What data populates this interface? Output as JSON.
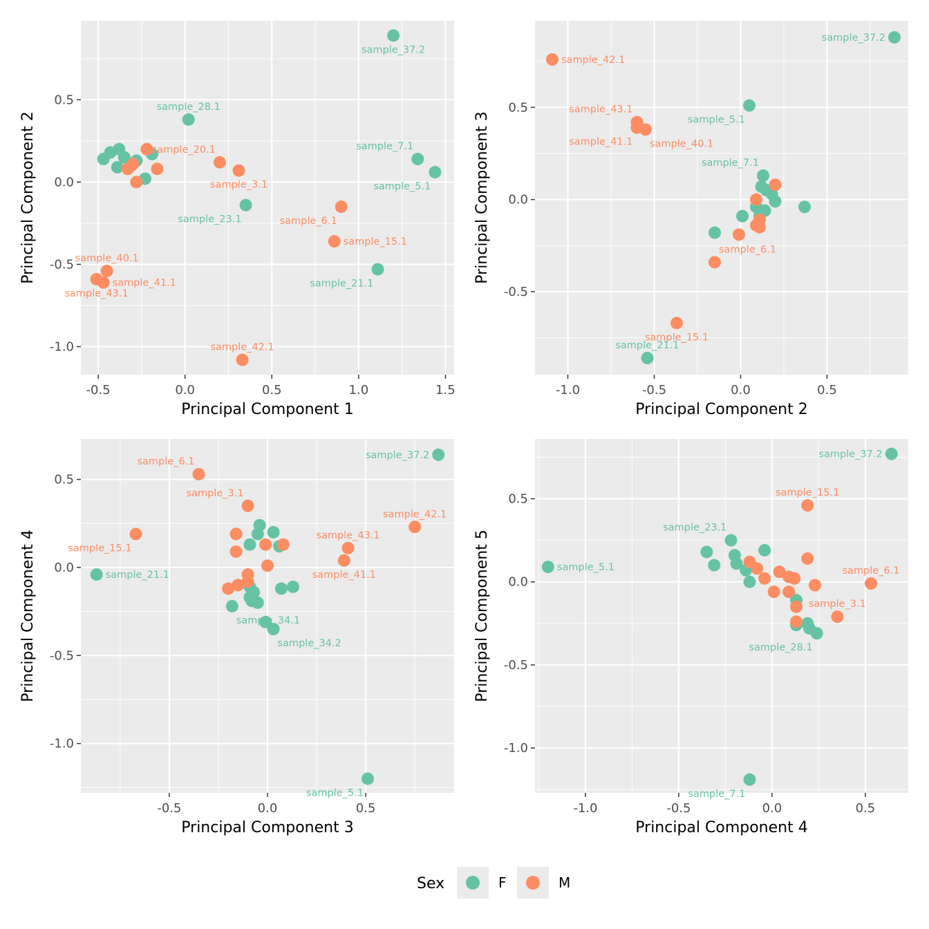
{
  "colors": {
    "F": "#66c2a5",
    "M": "#fc8d62"
  },
  "legend": {
    "title": "Sex",
    "entries": [
      {
        "key": "F",
        "label": "F"
      },
      {
        "key": "M",
        "label": "M"
      }
    ]
  },
  "chart_data": [
    {
      "type": "scatter",
      "xlabel": "Principal Component 1",
      "ylabel": "Principal Component 2",
      "xlim": [
        -0.6,
        1.55
      ],
      "ylim": [
        -1.17,
        0.98
      ],
      "xticks": [
        -0.5,
        0.0,
        0.5,
        1.0,
        1.5
      ],
      "xtick_labels": [
        "-0.5",
        "0.0",
        "0.5",
        "1.0",
        "1.5"
      ],
      "yticks": [
        -1.0,
        -0.5,
        0.0,
        0.5
      ],
      "ytick_labels": [
        "-1.0",
        "-0.5",
        "0.0",
        "0.5"
      ],
      "points": [
        {
          "x": 1.2,
          "y": 0.89,
          "sex": "F",
          "label": "sample_37.2",
          "lp": "below"
        },
        {
          "x": 0.02,
          "y": 0.38,
          "sex": "F",
          "label": "sample_28.1",
          "lp": "above"
        },
        {
          "x": 1.34,
          "y": 0.14,
          "sex": "F",
          "label": "sample_7.1",
          "lp": "above-left"
        },
        {
          "x": 1.44,
          "y": 0.06,
          "sex": "F",
          "label": "sample_5.1",
          "lp": "below-left"
        },
        {
          "x": 0.35,
          "y": -0.14,
          "sex": "F",
          "label": "sample_23.1",
          "lp": "below-left"
        },
        {
          "x": 1.11,
          "y": -0.53,
          "sex": "F",
          "label": "sample_21.1",
          "lp": "below-left"
        },
        {
          "x": 0.2,
          "y": 0.12,
          "sex": "M",
          "label": "sample_20.1",
          "lp": "above-left"
        },
        {
          "x": 0.31,
          "y": 0.07,
          "sex": "M",
          "label": "sample_3.1",
          "lp": "below"
        },
        {
          "x": 0.9,
          "y": -0.15,
          "sex": "M",
          "label": "sample_6.1",
          "lp": "below-left"
        },
        {
          "x": 0.86,
          "y": -0.36,
          "sex": "M",
          "label": "sample_15.1",
          "lp": "right"
        },
        {
          "x": -0.45,
          "y": -0.54,
          "sex": "M",
          "label": "sample_40.1",
          "lp": "above"
        },
        {
          "x": -0.47,
          "y": -0.61,
          "sex": "M",
          "label": "sample_41.1",
          "lp": "right"
        },
        {
          "x": -0.51,
          "y": -0.59,
          "sex": "M",
          "label": "sample_43.1",
          "lp": "below"
        },
        {
          "x": 0.33,
          "y": -1.08,
          "sex": "M",
          "label": "sample_42.1",
          "lp": "above"
        },
        {
          "x": -0.47,
          "y": 0.14,
          "sex": "F",
          "label": "",
          "lp": ""
        },
        {
          "x": -0.43,
          "y": 0.18,
          "sex": "F",
          "label": "",
          "lp": ""
        },
        {
          "x": -0.38,
          "y": 0.2,
          "sex": "F",
          "label": "",
          "lp": ""
        },
        {
          "x": -0.35,
          "y": 0.15,
          "sex": "F",
          "label": "",
          "lp": ""
        },
        {
          "x": -0.39,
          "y": 0.09,
          "sex": "F",
          "label": "",
          "lp": ""
        },
        {
          "x": -0.28,
          "y": 0.13,
          "sex": "F",
          "label": "",
          "lp": ""
        },
        {
          "x": -0.31,
          "y": 0.1,
          "sex": "F",
          "label": "",
          "lp": ""
        },
        {
          "x": -0.19,
          "y": 0.17,
          "sex": "F",
          "label": "",
          "lp": ""
        },
        {
          "x": -0.23,
          "y": 0.02,
          "sex": "F",
          "label": "",
          "lp": ""
        },
        {
          "x": -0.22,
          "y": 0.2,
          "sex": "M",
          "label": "",
          "lp": ""
        },
        {
          "x": -0.33,
          "y": 0.08,
          "sex": "M",
          "label": "",
          "lp": ""
        },
        {
          "x": -0.3,
          "y": 0.11,
          "sex": "M",
          "label": "",
          "lp": ""
        },
        {
          "x": -0.16,
          "y": 0.08,
          "sex": "M",
          "label": "",
          "lp": ""
        },
        {
          "x": -0.28,
          "y": 0.0,
          "sex": "M",
          "label": "",
          "lp": ""
        }
      ]
    },
    {
      "type": "scatter",
      "xlabel": "Principal Component 2",
      "ylabel": "Principal Component 3",
      "xlim": [
        -1.19,
        0.97
      ],
      "ylim": [
        -0.95,
        0.97
      ],
      "xticks": [
        -1.0,
        -0.5,
        0.0,
        0.5
      ],
      "xtick_labels": [
        "-1.0",
        "-0.5",
        "0.0",
        "0.5"
      ],
      "yticks": [
        -0.5,
        0.0,
        0.5
      ],
      "ytick_labels": [
        "-0.5",
        "0.0",
        "0.5"
      ],
      "points": [
        {
          "x": 0.89,
          "y": 0.88,
          "sex": "F",
          "label": "sample_37.2",
          "lp": "left"
        },
        {
          "x": 0.05,
          "y": 0.51,
          "sex": "F",
          "label": "sample_5.1",
          "lp": "below-left"
        },
        {
          "x": 0.13,
          "y": 0.13,
          "sex": "F",
          "label": "sample_7.1",
          "lp": "above-left"
        },
        {
          "x": -0.54,
          "y": -0.86,
          "sex": "F",
          "label": "sample_21.1",
          "lp": "above"
        },
        {
          "x": -1.09,
          "y": 0.76,
          "sex": "M",
          "label": "sample_42.1",
          "lp": "right"
        },
        {
          "x": -0.6,
          "y": 0.42,
          "sex": "M",
          "label": "sample_43.1",
          "lp": "above-left"
        },
        {
          "x": -0.6,
          "y": 0.39,
          "sex": "M",
          "label": "sample_41.1",
          "lp": "below-left"
        },
        {
          "x": -0.55,
          "y": 0.38,
          "sex": "M",
          "label": "sample_40.1",
          "lp": "below-right"
        },
        {
          "x": -0.15,
          "y": -0.34,
          "sex": "M",
          "label": "sample_6.1",
          "lp": "above-right"
        },
        {
          "x": -0.37,
          "y": -0.67,
          "sex": "M",
          "label": "sample_15.1",
          "lp": "below"
        },
        {
          "x": 0.37,
          "y": -0.04,
          "sex": "F",
          "label": "",
          "lp": ""
        },
        {
          "x": -0.15,
          "y": -0.18,
          "sex": "F",
          "label": "",
          "lp": ""
        },
        {
          "x": 0.01,
          "y": -0.09,
          "sex": "F",
          "label": "",
          "lp": ""
        },
        {
          "x": 0.12,
          "y": 0.07,
          "sex": "F",
          "label": "",
          "lp": ""
        },
        {
          "x": 0.15,
          "y": 0.05,
          "sex": "F",
          "label": "",
          "lp": ""
        },
        {
          "x": 0.18,
          "y": 0.03,
          "sex": "F",
          "label": "",
          "lp": ""
        },
        {
          "x": 0.2,
          "y": -0.01,
          "sex": "F",
          "label": "",
          "lp": ""
        },
        {
          "x": 0.09,
          "y": -0.04,
          "sex": "F",
          "label": "",
          "lp": ""
        },
        {
          "x": 0.14,
          "y": -0.06,
          "sex": "F",
          "label": "",
          "lp": ""
        },
        {
          "x": 0.11,
          "y": -0.09,
          "sex": "F",
          "label": "",
          "lp": ""
        },
        {
          "x": 0.2,
          "y": 0.08,
          "sex": "M",
          "label": "",
          "lp": ""
        },
        {
          "x": 0.09,
          "y": 0.0,
          "sex": "M",
          "label": "",
          "lp": ""
        },
        {
          "x": 0.09,
          "y": -0.14,
          "sex": "M",
          "label": "",
          "lp": ""
        },
        {
          "x": 0.11,
          "y": -0.11,
          "sex": "M",
          "label": "",
          "lp": ""
        },
        {
          "x": 0.11,
          "y": -0.15,
          "sex": "M",
          "label": "",
          "lp": ""
        },
        {
          "x": -0.01,
          "y": -0.19,
          "sex": "M",
          "label": "",
          "lp": ""
        }
      ]
    },
    {
      "type": "scatter",
      "xlabel": "Principal Component 3",
      "ylabel": "Principal Component 4",
      "xlim": [
        -0.95,
        0.95
      ],
      "ylim": [
        -1.28,
        0.73
      ],
      "xticks": [
        -0.5,
        0.0,
        0.5
      ],
      "xtick_labels": [
        "-0.5",
        "0.0",
        "0.5"
      ],
      "yticks": [
        -1.0,
        -0.5,
        0.0,
        0.5
      ],
      "ytick_labels": [
        "-1.0",
        "-0.5",
        "0.0",
        "0.5"
      ],
      "points": [
        {
          "x": 0.87,
          "y": 0.64,
          "sex": "F",
          "label": "sample_37.2",
          "lp": "left"
        },
        {
          "x": -0.87,
          "y": -0.04,
          "sex": "F",
          "label": "sample_21.1",
          "lp": "right"
        },
        {
          "x": -0.18,
          "y": -0.22,
          "sex": "F",
          "label": "sample_34.1",
          "lp": "below-right"
        },
        {
          "x": 0.03,
          "y": -0.35,
          "sex": "F",
          "label": "sample_34.2",
          "lp": "below-right"
        },
        {
          "x": 0.51,
          "y": -1.2,
          "sex": "F",
          "label": "sample_5.1",
          "lp": "below-left"
        },
        {
          "x": -0.35,
          "y": 0.53,
          "sex": "M",
          "label": "sample_6.1",
          "lp": "above-left"
        },
        {
          "x": -0.1,
          "y": 0.35,
          "sex": "M",
          "label": "sample_3.1",
          "lp": "above-left"
        },
        {
          "x": -0.67,
          "y": 0.19,
          "sex": "M",
          "label": "sample_15.1",
          "lp": "below-left"
        },
        {
          "x": 0.75,
          "y": 0.23,
          "sex": "M",
          "label": "sample_42.1",
          "lp": "above"
        },
        {
          "x": 0.41,
          "y": 0.11,
          "sex": "M",
          "label": "sample_43.1",
          "lp": "above"
        },
        {
          "x": 0.39,
          "y": 0.04,
          "sex": "M",
          "label": "sample_41.1",
          "lp": "below"
        },
        {
          "x": -0.04,
          "y": 0.24,
          "sex": "F",
          "label": "",
          "lp": ""
        },
        {
          "x": 0.03,
          "y": 0.2,
          "sex": "F",
          "label": "",
          "lp": ""
        },
        {
          "x": -0.05,
          "y": 0.19,
          "sex": "F",
          "label": "",
          "lp": ""
        },
        {
          "x": -0.09,
          "y": 0.13,
          "sex": "F",
          "label": "",
          "lp": ""
        },
        {
          "x": 0.06,
          "y": 0.12,
          "sex": "F",
          "label": "",
          "lp": ""
        },
        {
          "x": 0.13,
          "y": -0.11,
          "sex": "F",
          "label": "",
          "lp": ""
        },
        {
          "x": 0.07,
          "y": -0.12,
          "sex": "F",
          "label": "",
          "lp": ""
        },
        {
          "x": -0.09,
          "y": -0.11,
          "sex": "F",
          "label": "",
          "lp": ""
        },
        {
          "x": -0.07,
          "y": -0.14,
          "sex": "F",
          "label": "",
          "lp": ""
        },
        {
          "x": -0.09,
          "y": -0.17,
          "sex": "F",
          "label": "",
          "lp": ""
        },
        {
          "x": -0.08,
          "y": -0.19,
          "sex": "F",
          "label": "",
          "lp": ""
        },
        {
          "x": -0.05,
          "y": -0.2,
          "sex": "F",
          "label": "",
          "lp": ""
        },
        {
          "x": -0.01,
          "y": -0.31,
          "sex": "F",
          "label": "",
          "lp": ""
        },
        {
          "x": -0.16,
          "y": 0.19,
          "sex": "M",
          "label": "",
          "lp": ""
        },
        {
          "x": -0.01,
          "y": 0.13,
          "sex": "M",
          "label": "",
          "lp": ""
        },
        {
          "x": 0.08,
          "y": 0.13,
          "sex": "M",
          "label": "",
          "lp": ""
        },
        {
          "x": -0.16,
          "y": 0.09,
          "sex": "M",
          "label": "",
          "lp": ""
        },
        {
          "x": -0.1,
          "y": -0.04,
          "sex": "M",
          "label": "",
          "lp": ""
        },
        {
          "x": 0.0,
          "y": 0.01,
          "sex": "M",
          "label": "",
          "lp": ""
        },
        {
          "x": -0.1,
          "y": -0.08,
          "sex": "M",
          "label": "",
          "lp": ""
        },
        {
          "x": -0.2,
          "y": -0.12,
          "sex": "M",
          "label": "",
          "lp": ""
        },
        {
          "x": -0.15,
          "y": -0.1,
          "sex": "M",
          "label": "",
          "lp": ""
        }
      ]
    },
    {
      "type": "scatter",
      "xlabel": "Principal Component 4",
      "ylabel": "Principal Component 5",
      "xlim": [
        -1.27,
        0.73
      ],
      "ylim": [
        -1.27,
        0.86
      ],
      "xticks": [
        -1.0,
        -0.5,
        0.0,
        0.5
      ],
      "xtick_labels": [
        "-1.0",
        "-0.5",
        "0.0",
        "0.5"
      ],
      "yticks": [
        -1.0,
        -0.5,
        0.0,
        0.5
      ],
      "ytick_labels": [
        "-1.0",
        "-0.5",
        "0.0",
        "0.5"
      ],
      "points": [
        {
          "x": 0.64,
          "y": 0.77,
          "sex": "F",
          "label": "sample_37.2",
          "lp": "left"
        },
        {
          "x": -1.2,
          "y": 0.09,
          "sex": "F",
          "label": "sample_5.1",
          "lp": "right"
        },
        {
          "x": -0.22,
          "y": 0.25,
          "sex": "F",
          "label": "sample_23.1",
          "lp": "above-left"
        },
        {
          "x": 0.24,
          "y": -0.31,
          "sex": "F",
          "label": "sample_28.1",
          "lp": "below-left"
        },
        {
          "x": -0.12,
          "y": -1.19,
          "sex": "F",
          "label": "sample_7.1",
          "lp": "below-left"
        },
        {
          "x": 0.19,
          "y": 0.46,
          "sex": "M",
          "label": "sample_15.1",
          "lp": "above"
        },
        {
          "x": 0.53,
          "y": -0.01,
          "sex": "M",
          "label": "sample_6.1",
          "lp": "above"
        },
        {
          "x": 0.35,
          "y": -0.21,
          "sex": "M",
          "label": "sample_3.1",
          "lp": "above"
        },
        {
          "x": -0.35,
          "y": 0.18,
          "sex": "F",
          "label": "",
          "lp": ""
        },
        {
          "x": -0.31,
          "y": 0.1,
          "sex": "F",
          "label": "",
          "lp": ""
        },
        {
          "x": -0.2,
          "y": 0.16,
          "sex": "F",
          "label": "",
          "lp": ""
        },
        {
          "x": -0.19,
          "y": 0.11,
          "sex": "F",
          "label": "",
          "lp": ""
        },
        {
          "x": -0.04,
          "y": 0.19,
          "sex": "F",
          "label": "",
          "lp": ""
        },
        {
          "x": -0.14,
          "y": 0.07,
          "sex": "F",
          "label": "",
          "lp": ""
        },
        {
          "x": -0.12,
          "y": 0.0,
          "sex": "F",
          "label": "",
          "lp": ""
        },
        {
          "x": 0.13,
          "y": -0.11,
          "sex": "F",
          "label": "",
          "lp": ""
        },
        {
          "x": 0.19,
          "y": -0.25,
          "sex": "F",
          "label": "",
          "lp": ""
        },
        {
          "x": 0.2,
          "y": -0.28,
          "sex": "F",
          "label": "",
          "lp": ""
        },
        {
          "x": 0.13,
          "y": -0.26,
          "sex": "F",
          "label": "",
          "lp": ""
        },
        {
          "x": -0.12,
          "y": 0.12,
          "sex": "M",
          "label": "",
          "lp": ""
        },
        {
          "x": -0.08,
          "y": 0.08,
          "sex": "M",
          "label": "",
          "lp": ""
        },
        {
          "x": 0.04,
          "y": 0.06,
          "sex": "M",
          "label": "",
          "lp": ""
        },
        {
          "x": 0.09,
          "y": 0.03,
          "sex": "M",
          "label": "",
          "lp": ""
        },
        {
          "x": 0.12,
          "y": 0.02,
          "sex": "M",
          "label": "",
          "lp": ""
        },
        {
          "x": -0.04,
          "y": 0.02,
          "sex": "M",
          "label": "",
          "lp": ""
        },
        {
          "x": 0.19,
          "y": 0.14,
          "sex": "M",
          "label": "",
          "lp": ""
        },
        {
          "x": 0.23,
          "y": -0.02,
          "sex": "M",
          "label": "",
          "lp": ""
        },
        {
          "x": 0.01,
          "y": -0.06,
          "sex": "M",
          "label": "",
          "lp": ""
        },
        {
          "x": 0.09,
          "y": -0.06,
          "sex": "M",
          "label": "",
          "lp": ""
        },
        {
          "x": 0.13,
          "y": -0.15,
          "sex": "M",
          "label": "",
          "lp": ""
        },
        {
          "x": 0.13,
          "y": -0.24,
          "sex": "M",
          "label": "",
          "lp": ""
        }
      ]
    }
  ]
}
